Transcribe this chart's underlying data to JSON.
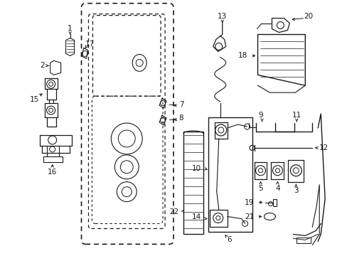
{
  "background_color": "#ffffff",
  "figsize": [
    4.89,
    3.6
  ],
  "dpi": 100,
  "line_color": "#1a1a1a",
  "label_fontsize": 7.5,
  "label_fontsize_small": 6.5
}
